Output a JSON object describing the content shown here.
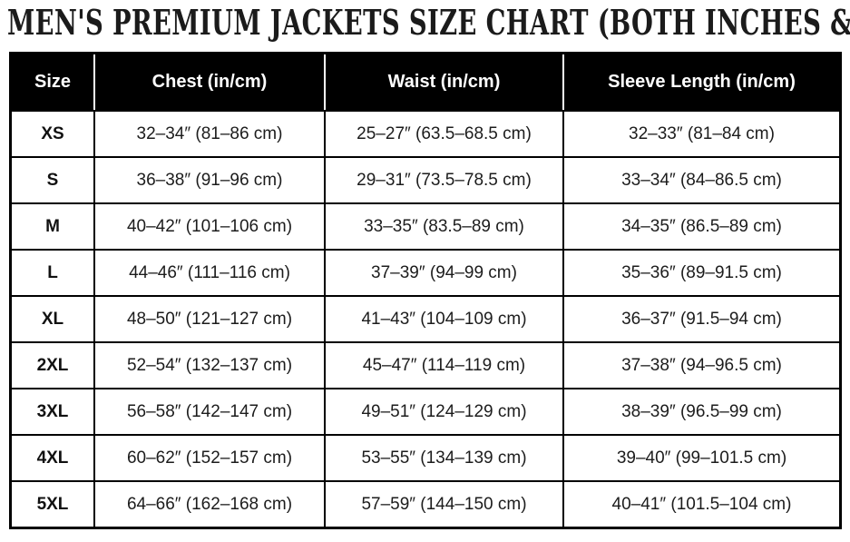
{
  "title": "MEN'S PREMIUM JACKETS SIZE CHART (BOTH INCHES & CM)",
  "chart_data": {
    "type": "table",
    "title": "MEN'S PREMIUM JACKETS SIZE CHART (BOTH INCHES & CM)",
    "columns": [
      "Size",
      "Chest (in/cm)",
      "Waist (in/cm)",
      "Sleeve Length (in/cm)"
    ],
    "rows": [
      [
        "XS",
        "32–34″ (81–86 cm)",
        "25–27″ (63.5–68.5 cm)",
        "32–33″ (81–84 cm)"
      ],
      [
        "S",
        "36–38″ (91–96 cm)",
        "29–31″ (73.5–78.5 cm)",
        "33–34″ (84–86.5 cm)"
      ],
      [
        "M",
        "40–42″ (101–106 cm)",
        "33–35″ (83.5–89 cm)",
        "34–35″ (86.5–89 cm)"
      ],
      [
        "L",
        "44–46″ (111–116 cm)",
        "37–39″ (94–99 cm)",
        "35–36″ (89–91.5 cm)"
      ],
      [
        "XL",
        "48–50″ (121–127 cm)",
        "41–43″ (104–109 cm)",
        "36–37″ (91.5–94 cm)"
      ],
      [
        "2XL",
        "52–54″ (132–137 cm)",
        "45–47″ (114–119 cm)",
        "37–38″ (94–96.5 cm)"
      ],
      [
        "3XL",
        "56–58″ (142–147 cm)",
        "49–51″ (124–129 cm)",
        "38–39″ (96.5–99 cm)"
      ],
      [
        "4XL",
        "60–62″ (152–157 cm)",
        "53–55″ (134–139 cm)",
        "39–40″ (99–101.5 cm)"
      ],
      [
        "5XL",
        "64–66″ (162–168 cm)",
        "57–59″ (144–150 cm)",
        "40–41″ (101.5–104 cm)"
      ]
    ],
    "layout": {
      "header_bg": "#000000",
      "header_text_color": "#ffffff",
      "header_divider_color": "#ffffff",
      "body_text_color": "#1c1c1c",
      "grid_color": "#000000",
      "outer_border_color": "#000000",
      "grid": true,
      "legend": false
    }
  }
}
